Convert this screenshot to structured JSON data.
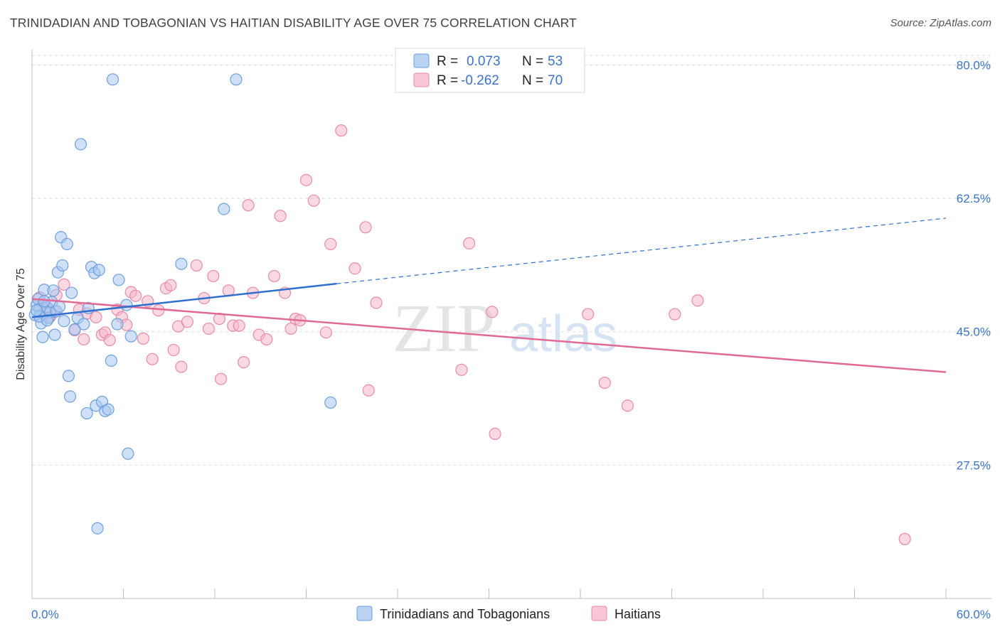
{
  "title": "TRINIDADIAN AND TOBAGONIAN VS HAITIAN DISABILITY AGE OVER 75 CORRELATION CHART",
  "source": "Source: ZipAtlas.com",
  "legend": {
    "series1": {
      "r_label": "R =",
      "r_value": "0.073",
      "n_label": "N =",
      "n_value": "53"
    },
    "series2": {
      "r_label": "R =",
      "r_value": "-0.262",
      "n_label": "N =",
      "n_value": "70"
    }
  },
  "bottom_legend": {
    "series1": "Trinidadians and Tobagonians",
    "series2": "Haitians"
  },
  "watermark": {
    "zip": "ZIP",
    "atlas": "atlas"
  },
  "colors": {
    "series1_fill": "#a9c8f0",
    "series1_stroke": "#6d9fdc",
    "series1_line": "#2f6fcf",
    "series2_fill": "#f6b8cb",
    "series2_stroke": "#e889a8",
    "series2_line": "#e06a95",
    "axis_label": "#3b73c8"
  },
  "chart_data": {
    "type": "scatter",
    "title": "TRINIDADIAN AND TOBAGONIAN VS HAITIAN DISABILITY AGE OVER 75 CORRELATION CHART",
    "xlabel": "",
    "ylabel": "Disability Age Over 75",
    "xlim": [
      0,
      60
    ],
    "ylim": [
      10,
      82
    ],
    "x_tick_labels": [
      "0.0%",
      "60.0%"
    ],
    "y_tick_labels": [
      "27.5%",
      "45.0%",
      "62.5%",
      "80.0%"
    ],
    "y_ticks": [
      27.5,
      45.0,
      62.5,
      80.0
    ],
    "grid": "horizontal dashed",
    "legend_position": "top-center",
    "series": [
      {
        "name": "Trinidadians and Tobagonians",
        "points": [
          [
            0.2,
            47.2
          ],
          [
            0.3,
            48.5
          ],
          [
            0.4,
            49.3
          ],
          [
            0.5,
            48.0
          ],
          [
            0.6,
            46.1
          ],
          [
            0.7,
            44.3
          ],
          [
            0.8,
            50.5
          ],
          [
            0.9,
            47.5
          ],
          [
            1.0,
            48.2
          ],
          [
            1.1,
            46.8
          ],
          [
            1.2,
            47.6
          ],
          [
            1.3,
            48.9
          ],
          [
            1.4,
            50.4
          ],
          [
            1.5,
            44.6
          ],
          [
            1.6,
            47.7
          ],
          [
            1.7,
            52.8
          ],
          [
            1.9,
            57.4
          ],
          [
            2.0,
            53.7
          ],
          [
            2.1,
            46.4
          ],
          [
            2.3,
            56.5
          ],
          [
            2.4,
            39.2
          ],
          [
            2.5,
            36.5
          ],
          [
            2.6,
            50.1
          ],
          [
            2.8,
            45.3
          ],
          [
            3.0,
            46.8
          ],
          [
            3.2,
            69.6
          ],
          [
            3.4,
            46.0
          ],
          [
            3.6,
            34.3
          ],
          [
            3.7,
            48.1
          ],
          [
            3.9,
            53.5
          ],
          [
            4.1,
            52.7
          ],
          [
            4.2,
            35.3
          ],
          [
            4.3,
            19.2
          ],
          [
            4.4,
            53.1
          ],
          [
            4.6,
            35.8
          ],
          [
            4.8,
            34.6
          ],
          [
            5.0,
            34.8
          ],
          [
            5.2,
            41.2
          ],
          [
            5.3,
            78.1
          ],
          [
            5.6,
            46.0
          ],
          [
            5.7,
            51.8
          ],
          [
            6.2,
            48.5
          ],
          [
            6.3,
            29.0
          ],
          [
            6.5,
            44.4
          ],
          [
            9.8,
            53.9
          ],
          [
            12.6,
            61.1
          ],
          [
            13.4,
            78.1
          ],
          [
            19.6,
            35.7
          ],
          [
            0.5,
            47.0
          ],
          [
            1.0,
            46.5
          ],
          [
            0.8,
            49.0
          ],
          [
            0.3,
            47.8
          ],
          [
            1.8,
            48.3
          ]
        ],
        "trend": {
          "x": [
            0,
            20
          ],
          "y": [
            46.9,
            51.3
          ]
        },
        "trend_dashed": {
          "x": [
            20,
            60
          ],
          "y": [
            51.3,
            59.9
          ]
        }
      },
      {
        "name": "Haitians",
        "points": [
          [
            0.5,
            49.5
          ],
          [
            0.8,
            47.3
          ],
          [
            1.0,
            48.0
          ],
          [
            1.2,
            47.0
          ],
          [
            1.6,
            49.8
          ],
          [
            2.1,
            51.2
          ],
          [
            2.8,
            45.2
          ],
          [
            3.1,
            47.9
          ],
          [
            3.4,
            44.0
          ],
          [
            3.6,
            47.4
          ],
          [
            4.2,
            46.9
          ],
          [
            4.6,
            44.6
          ],
          [
            4.8,
            44.9
          ],
          [
            5.1,
            43.9
          ],
          [
            5.6,
            47.9
          ],
          [
            5.9,
            46.9
          ],
          [
            6.2,
            45.9
          ],
          [
            6.5,
            50.2
          ],
          [
            6.8,
            49.7
          ],
          [
            7.3,
            44.1
          ],
          [
            7.6,
            49.0
          ],
          [
            7.9,
            41.4
          ],
          [
            8.3,
            47.8
          ],
          [
            8.8,
            50.7
          ],
          [
            9.1,
            51.1
          ],
          [
            9.3,
            42.6
          ],
          [
            9.6,
            45.7
          ],
          [
            9.8,
            40.4
          ],
          [
            10.2,
            46.3
          ],
          [
            10.8,
            53.7
          ],
          [
            11.3,
            49.4
          ],
          [
            11.6,
            45.4
          ],
          [
            11.9,
            52.3
          ],
          [
            12.3,
            46.7
          ],
          [
            12.4,
            38.8
          ],
          [
            12.9,
            50.4
          ],
          [
            13.2,
            45.8
          ],
          [
            13.6,
            45.8
          ],
          [
            13.9,
            41.0
          ],
          [
            14.2,
            61.6
          ],
          [
            14.5,
            50.1
          ],
          [
            14.9,
            44.6
          ],
          [
            15.4,
            44.0
          ],
          [
            15.9,
            52.3
          ],
          [
            16.3,
            60.2
          ],
          [
            16.6,
            50.1
          ],
          [
            17.0,
            45.4
          ],
          [
            17.3,
            46.7
          ],
          [
            17.6,
            46.5
          ],
          [
            18.0,
            64.9
          ],
          [
            18.5,
            62.2
          ],
          [
            19.3,
            44.9
          ],
          [
            19.6,
            56.5
          ],
          [
            20.3,
            71.4
          ],
          [
            21.2,
            53.3
          ],
          [
            21.9,
            58.7
          ],
          [
            22.1,
            37.3
          ],
          [
            22.6,
            48.8
          ],
          [
            28.2,
            40.0
          ],
          [
            28.7,
            56.6
          ],
          [
            30.2,
            47.6
          ],
          [
            30.4,
            31.6
          ],
          [
            36.5,
            47.3
          ],
          [
            37.6,
            38.3
          ],
          [
            39.1,
            35.3
          ],
          [
            42.2,
            47.3
          ],
          [
            43.7,
            49.1
          ],
          [
            57.3,
            17.8
          ],
          [
            0.7,
            48.6
          ],
          [
            1.5,
            47.6
          ]
        ],
        "trend": {
          "x": [
            0,
            60
          ],
          "y": [
            49.3,
            39.7
          ]
        }
      }
    ]
  }
}
